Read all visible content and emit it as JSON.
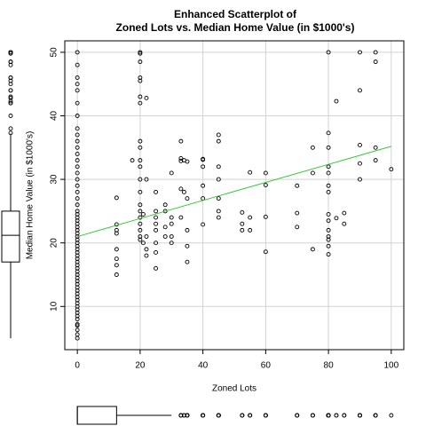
{
  "chart_data": {
    "type": "scatter",
    "title_lines": [
      "Enhanced Scatterplot of",
      "Zoned Lots vs. Median Home Value (in $1000's)"
    ],
    "x_label": "Zoned Lots",
    "y_label": "Median Home Value (in $1000's)",
    "x": [
      0,
      0,
      0,
      0,
      0,
      0,
      0,
      0,
      0,
      0,
      0,
      0,
      0,
      0,
      0,
      0,
      0,
      0,
      0,
      0,
      0,
      0,
      0,
      0,
      0,
      0,
      0,
      0,
      0,
      0,
      0,
      0,
      0,
      0,
      0,
      0,
      0,
      0,
      0,
      0,
      0,
      0,
      0,
      0,
      0,
      0,
      0,
      0,
      0,
      0,
      0,
      0,
      0,
      0,
      0,
      0,
      0,
      0,
      0,
      0,
      12.5,
      12.5,
      12.5,
      12.5,
      12.5,
      12.5,
      12.5,
      12.5,
      17.5,
      20,
      20,
      20,
      20,
      20,
      20,
      20,
      20,
      20,
      20,
      20,
      20,
      20,
      20,
      20,
      20,
      20,
      20,
      20,
      20,
      21,
      21,
      22,
      22,
      22,
      22,
      22,
      25,
      25,
      25,
      25,
      25,
      25,
      25,
      25,
      28,
      28,
      28,
      28,
      30,
      30,
      30,
      30,
      30,
      33,
      33,
      33,
      33,
      33,
      34,
      34,
      35,
      35,
      35,
      35,
      35,
      40,
      40,
      40,
      40,
      40,
      40,
      45,
      45,
      45,
      45,
      45,
      45,
      45,
      52.5,
      52.5,
      52.5,
      55,
      55,
      55,
      60,
      60,
      60,
      60,
      70,
      70,
      70,
      75,
      75,
      75,
      80,
      80,
      80,
      80,
      80,
      80,
      80,
      80,
      80,
      80,
      80,
      80,
      80,
      80,
      82.5,
      82.5,
      85,
      85,
      90,
      90,
      90,
      90,
      90,
      95,
      95,
      95,
      95,
      100
    ],
    "values": [
      5,
      5.6,
      6.3,
      7,
      7.2,
      8,
      8.5,
      9,
      9.5,
      10,
      10.5,
      11,
      11.5,
      12,
      12.5,
      13,
      13.5,
      14,
      14.5,
      15,
      15.5,
      16,
      16.5,
      17,
      17.5,
      18,
      18.5,
      19,
      19.5,
      20,
      20.5,
      21,
      21.5,
      22,
      22.5,
      23,
      23.5,
      24,
      24.5,
      25,
      26,
      27,
      28,
      29,
      30,
      31,
      32,
      33,
      34,
      35,
      36,
      37,
      38,
      40,
      42,
      44,
      45,
      46,
      48,
      50,
      15,
      16.5,
      17.5,
      19,
      21.5,
      22,
      22.9,
      27.1,
      33,
      20.5,
      21,
      22,
      23,
      24,
      25,
      26,
      28,
      30,
      32,
      33,
      35,
      36,
      42,
      43,
      45.5,
      46,
      48.5,
      50,
      49.8,
      24.5,
      20,
      18,
      19,
      21,
      30,
      42.8,
      16,
      18.5,
      20,
      22,
      23,
      24,
      25,
      28,
      21,
      22.5,
      25,
      26,
      20,
      21,
      23,
      24,
      31,
      32.9,
      33.3,
      36,
      28.5,
      24,
      33,
      28,
      17,
      19.5,
      22,
      27,
      32.8,
      22.9,
      27,
      29,
      32,
      33.2,
      33.1,
      24,
      25,
      27,
      30,
      32,
      36,
      37,
      22,
      23,
      24.8,
      22,
      24,
      31.1,
      18.6,
      24.1,
      29.1,
      31,
      22.5,
      24.7,
      29,
      19,
      31,
      35,
      18.2,
      19.5,
      20.5,
      21,
      22,
      23.5,
      24.5,
      28,
      29,
      31,
      32,
      35,
      37.3,
      50,
      23.9,
      42.3,
      23,
      24.7,
      30,
      32.5,
      35.4,
      44,
      50,
      33,
      35,
      48.5,
      50,
      31.6
    ],
    "point_color": "#000000",
    "fit": {
      "x": [
        0,
        100
      ],
      "values": [
        21,
        35.2
      ],
      "color": "#3cc83c"
    },
    "box_y": {
      "whisker_low": 5,
      "q1": 17,
      "median": 21.2,
      "q3": 25,
      "whisker_high": 37.2
    },
    "box_x": {
      "whisker_low": 0,
      "q1": 0,
      "median": 0,
      "q3": 12.5,
      "whisker_high": 30
    },
    "xlim": [
      -4,
      104
    ],
    "xticks": [
      0,
      20,
      40,
      60,
      80,
      100
    ],
    "ylim": [
      3.2,
      51.8
    ],
    "yticks": [
      10,
      20,
      30,
      40,
      50
    ],
    "grid": true
  }
}
